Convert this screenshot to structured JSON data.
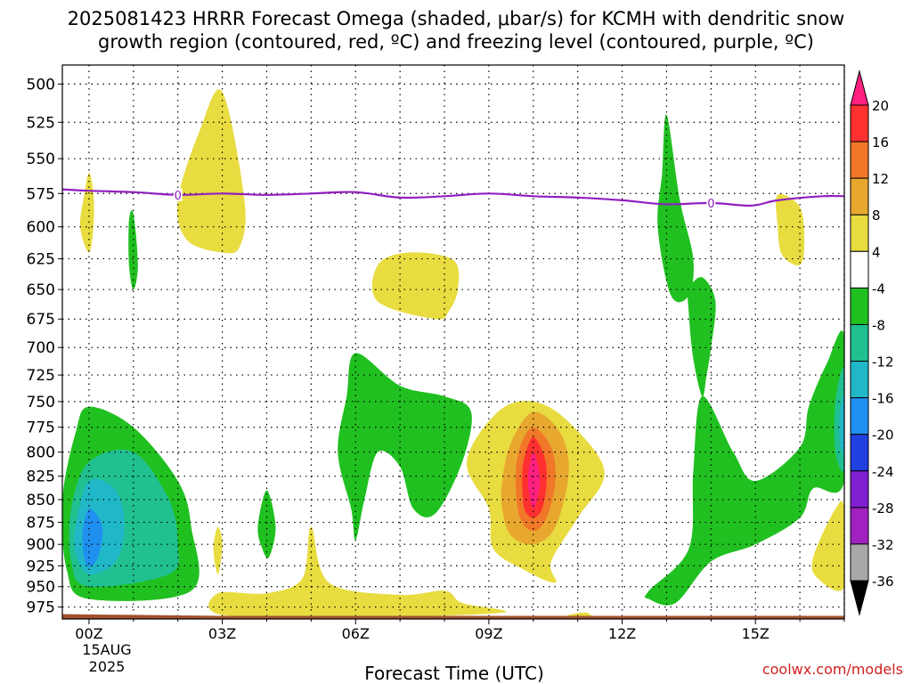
{
  "title": {
    "line1": "2025081423 HRRR Forecast Omega (shaded, μbar/s) for KCMH with dendritic snow",
    "line2": "growth region (contoured, red, ºC) and freezing level (contoured, purple, ºC)"
  },
  "credit": "coolwx.com/models",
  "chart_data": {
    "type": "heatmap",
    "xlabel": "Forecast Time (UTC)",
    "x_ticks": [
      "00Z",
      "03Z",
      "06Z",
      "09Z",
      "12Z",
      "15Z"
    ],
    "x_tick_hours": [
      0,
      3,
      6,
      9,
      12,
      15
    ],
    "x_range_hours": [
      -0.6,
      17.0
    ],
    "date_label": [
      "15AUG",
      "2025"
    ],
    "y_ticks": [
      500,
      525,
      550,
      575,
      600,
      625,
      650,
      675,
      700,
      725,
      750,
      775,
      800,
      825,
      850,
      875,
      900,
      925,
      950,
      975
    ],
    "y_range_hpa": [
      990,
      488
    ],
    "y_scale": "log-pressure (inverted)",
    "grid": true,
    "colorbar": {
      "labels": [
        "20",
        "16",
        "12",
        "8",
        "4",
        "-4",
        "-8",
        "-12",
        "-16",
        "-20",
        "-24",
        "-28",
        "-32",
        "-36"
      ],
      "colors": [
        "#ff2080",
        "#ff3030",
        "#f07828",
        "#e8a830",
        "#e8dc40",
        "#ffffff",
        "#20c020",
        "#20c090",
        "#20b8c8",
        "#2090f0",
        "#2040e0",
        "#8020d0",
        "#a020c0",
        "#a8a8a8",
        "#000000"
      ]
    },
    "freezing_level": {
      "color": "#9020c0",
      "label": "0",
      "points": [
        [
          -0.6,
          572
        ],
        [
          0,
          573
        ],
        [
          1,
          574
        ],
        [
          2,
          576
        ],
        [
          3,
          575
        ],
        [
          4,
          576
        ],
        [
          5,
          575
        ],
        [
          6,
          574
        ],
        [
          7,
          578
        ],
        [
          8,
          577
        ],
        [
          9,
          575
        ],
        [
          10,
          577
        ],
        [
          11,
          578
        ],
        [
          12,
          580
        ],
        [
          13,
          583
        ],
        [
          14,
          582
        ],
        [
          14.9,
          584
        ],
        [
          15.5,
          580
        ],
        [
          16.5,
          577
        ],
        [
          17.0,
          577
        ]
      ],
      "label_hours": [
        2,
        14
      ]
    },
    "terrain": {
      "color": "#a0522d",
      "surface_hpa": 985
    },
    "omega_regions": [
      {
        "level": "4",
        "hours": [
          [
            -0.2,
            600
          ],
          [
            -0.1,
            575
          ],
          [
            0,
            560
          ],
          [
            0.1,
            575
          ],
          [
            0.1,
            600
          ],
          [
            0,
            620
          ]
        ]
      },
      {
        "level": "4",
        "hours": [
          [
            2,
            580
          ],
          [
            2.5,
            530
          ],
          [
            3,
            505
          ],
          [
            3.5,
            580
          ],
          [
            3.4,
            615
          ],
          [
            3,
            620
          ],
          [
            2.2,
            610
          ]
        ]
      },
      {
        "level": "4",
        "hours": [
          [
            6.5,
            630
          ],
          [
            7.2,
            620
          ],
          [
            8.2,
            626
          ],
          [
            8.3,
            650
          ],
          [
            8.1,
            668
          ],
          [
            7.8,
            675
          ],
          [
            6.5,
            660
          ]
        ]
      },
      {
        "level": "4",
        "hours": [
          [
            15.5,
            576
          ],
          [
            16,
            585
          ],
          [
            16.1,
            612
          ],
          [
            16,
            630
          ],
          [
            15.6,
            622
          ],
          [
            15.5,
            600
          ]
        ]
      },
      {
        "level": "4",
        "hours": [
          [
            2.8,
            905
          ],
          [
            2.9,
            880
          ],
          [
            3,
            900
          ],
          [
            2.9,
            935
          ]
        ]
      },
      {
        "level": "4",
        "hours": [
          [
            2.9,
            958
          ],
          [
            4,
            958
          ],
          [
            4.8,
            940
          ],
          [
            5,
            880
          ],
          [
            5.4,
            945
          ],
          [
            7,
            960
          ],
          [
            8,
            955
          ],
          [
            8.4,
            970
          ],
          [
            9.3,
            982
          ],
          [
            6,
            988
          ],
          [
            3,
            985
          ]
        ]
      },
      {
        "level": "4",
        "hours": [
          [
            10.8,
            985
          ],
          [
            11.2,
            982
          ],
          [
            11.3,
            990
          ],
          [
            10.8,
            990
          ]
        ]
      },
      {
        "level": "4",
        "hours": [
          [
            9,
            860
          ],
          [
            8.5,
            810
          ],
          [
            9.2,
            760
          ],
          [
            10,
            750
          ],
          [
            10.8,
            770
          ],
          [
            11.6,
            820
          ],
          [
            11,
            870
          ],
          [
            10.4,
            920
          ],
          [
            10.5,
            945
          ],
          [
            9.8,
            930
          ],
          [
            9.1,
            905
          ]
        ]
      },
      {
        "level": "4",
        "hours": [
          [
            16.3,
            915
          ],
          [
            16.8,
            860
          ],
          [
            17.0,
            860
          ],
          [
            17.0,
            950
          ],
          [
            16.4,
            940
          ]
        ]
      },
      {
        "level": "8",
        "hours": [
          [
            9.3,
            830
          ],
          [
            9.5,
            790
          ],
          [
            10,
            760
          ],
          [
            10.6,
            780
          ],
          [
            10.8,
            820
          ],
          [
            10.5,
            880
          ],
          [
            10,
            900
          ],
          [
            9.5,
            890
          ],
          [
            9.3,
            860
          ]
        ]
      },
      {
        "level": "12",
        "hours": [
          [
            9.6,
            830
          ],
          [
            9.7,
            795
          ],
          [
            10,
            775
          ],
          [
            10.4,
            795
          ],
          [
            10.5,
            830
          ],
          [
            10.3,
            870
          ],
          [
            10,
            885
          ],
          [
            9.7,
            870
          ]
        ]
      },
      {
        "level": "16",
        "hours": [
          [
            9.75,
            830
          ],
          [
            9.8,
            805
          ],
          [
            10,
            785
          ],
          [
            10.25,
            805
          ],
          [
            10.3,
            830
          ],
          [
            10.2,
            860
          ],
          [
            10,
            870
          ],
          [
            9.8,
            860
          ]
        ]
      },
      {
        "level": "20",
        "hours": [
          [
            9.88,
            830
          ],
          [
            10,
            800
          ],
          [
            10.15,
            830
          ],
          [
            10,
            860
          ]
        ]
      },
      {
        "level": "-4",
        "hours": [
          [
            0.9,
            595
          ],
          [
            1,
            590
          ],
          [
            1.1,
            630
          ],
          [
            1,
            650
          ],
          [
            0.9,
            630
          ]
        ]
      },
      {
        "level": "-4",
        "hours": [
          [
            5.6,
            800
          ],
          [
            5.8,
            745
          ],
          [
            6,
            705
          ],
          [
            7,
            735
          ],
          [
            8,
            745
          ],
          [
            8.6,
            760
          ],
          [
            8.4,
            810
          ],
          [
            7.8,
            865
          ],
          [
            7.3,
            860
          ],
          [
            7,
            815
          ],
          [
            6.5,
            800
          ],
          [
            6.2,
            850
          ],
          [
            6,
            895
          ],
          [
            5.9,
            860
          ]
        ]
      },
      {
        "level": "-4",
        "hours": [
          [
            3.8,
            880
          ],
          [
            4,
            840
          ],
          [
            4.2,
            880
          ],
          [
            4.05,
            915
          ],
          [
            3.9,
            905
          ]
        ]
      },
      {
        "level": "-4",
        "hours": [
          [
            -0.6,
            850
          ],
          [
            -0.3,
            780
          ],
          [
            0,
            755
          ],
          [
            1,
            775
          ],
          [
            2,
            830
          ],
          [
            2.3,
            880
          ],
          [
            2.3,
            955
          ],
          [
            0,
            965
          ],
          [
            -0.5,
            930
          ]
        ]
      },
      {
        "level": "-4",
        "hours": [
          [
            12.9,
            560
          ],
          [
            13,
            520
          ],
          [
            13.3,
            580
          ],
          [
            13.6,
            625
          ],
          [
            13.5,
            655
          ],
          [
            13.1,
            655
          ],
          [
            12.8,
            600
          ]
        ]
      },
      {
        "level": "-4",
        "hours": [
          [
            13.5,
            650
          ],
          [
            13.8,
            640
          ],
          [
            14.1,
            660
          ],
          [
            14,
            700
          ],
          [
            13.9,
            725
          ],
          [
            13.8,
            745
          ],
          [
            13.6,
            710
          ],
          [
            13.5,
            670
          ]
        ]
      },
      {
        "level": "-4",
        "hours": [
          [
            12.6,
            955
          ],
          [
            13.5,
            905
          ],
          [
            13.6,
            820
          ],
          [
            13.8,
            745
          ],
          [
            14.5,
            800
          ],
          [
            15,
            830
          ],
          [
            16,
            795
          ],
          [
            16.2,
            755
          ],
          [
            16.6,
            715
          ],
          [
            17.0,
            690
          ],
          [
            17.0,
            830
          ],
          [
            16.3,
            838
          ],
          [
            16,
            870
          ],
          [
            15,
            900
          ],
          [
            14,
            920
          ],
          [
            13.2,
            970
          ],
          [
            12.6,
            965
          ]
        ]
      },
      {
        "level": "-8",
        "hours": [
          [
            -0.4,
            860
          ],
          [
            0,
            810
          ],
          [
            1,
            800
          ],
          [
            1.8,
            850
          ],
          [
            2,
            900
          ],
          [
            1.8,
            935
          ],
          [
            0,
            950
          ],
          [
            -0.4,
            920
          ]
        ]
      },
      {
        "level": "-8",
        "hours": [
          [
            16.8,
            750
          ],
          [
            17.0,
            720
          ],
          [
            17.0,
            815
          ],
          [
            16.8,
            800
          ]
        ]
      },
      {
        "level": "-12",
        "hours": [
          [
            -0.3,
            880
          ],
          [
            0,
            830
          ],
          [
            0.6,
            840
          ],
          [
            0.8,
            880
          ],
          [
            0.6,
            920
          ],
          [
            0,
            935
          ],
          [
            -0.3,
            910
          ]
        ]
      },
      {
        "level": "-12",
        "hours": [
          [
            16.9,
            760
          ],
          [
            17.0,
            745
          ],
          [
            17.0,
            800
          ],
          [
            16.9,
            790
          ]
        ]
      },
      {
        "level": "-16",
        "hours": [
          [
            -0.15,
            890
          ],
          [
            0,
            860
          ],
          [
            0.3,
            880
          ],
          [
            0.2,
            915
          ],
          [
            -0.05,
            925
          ]
        ]
      }
    ]
  }
}
